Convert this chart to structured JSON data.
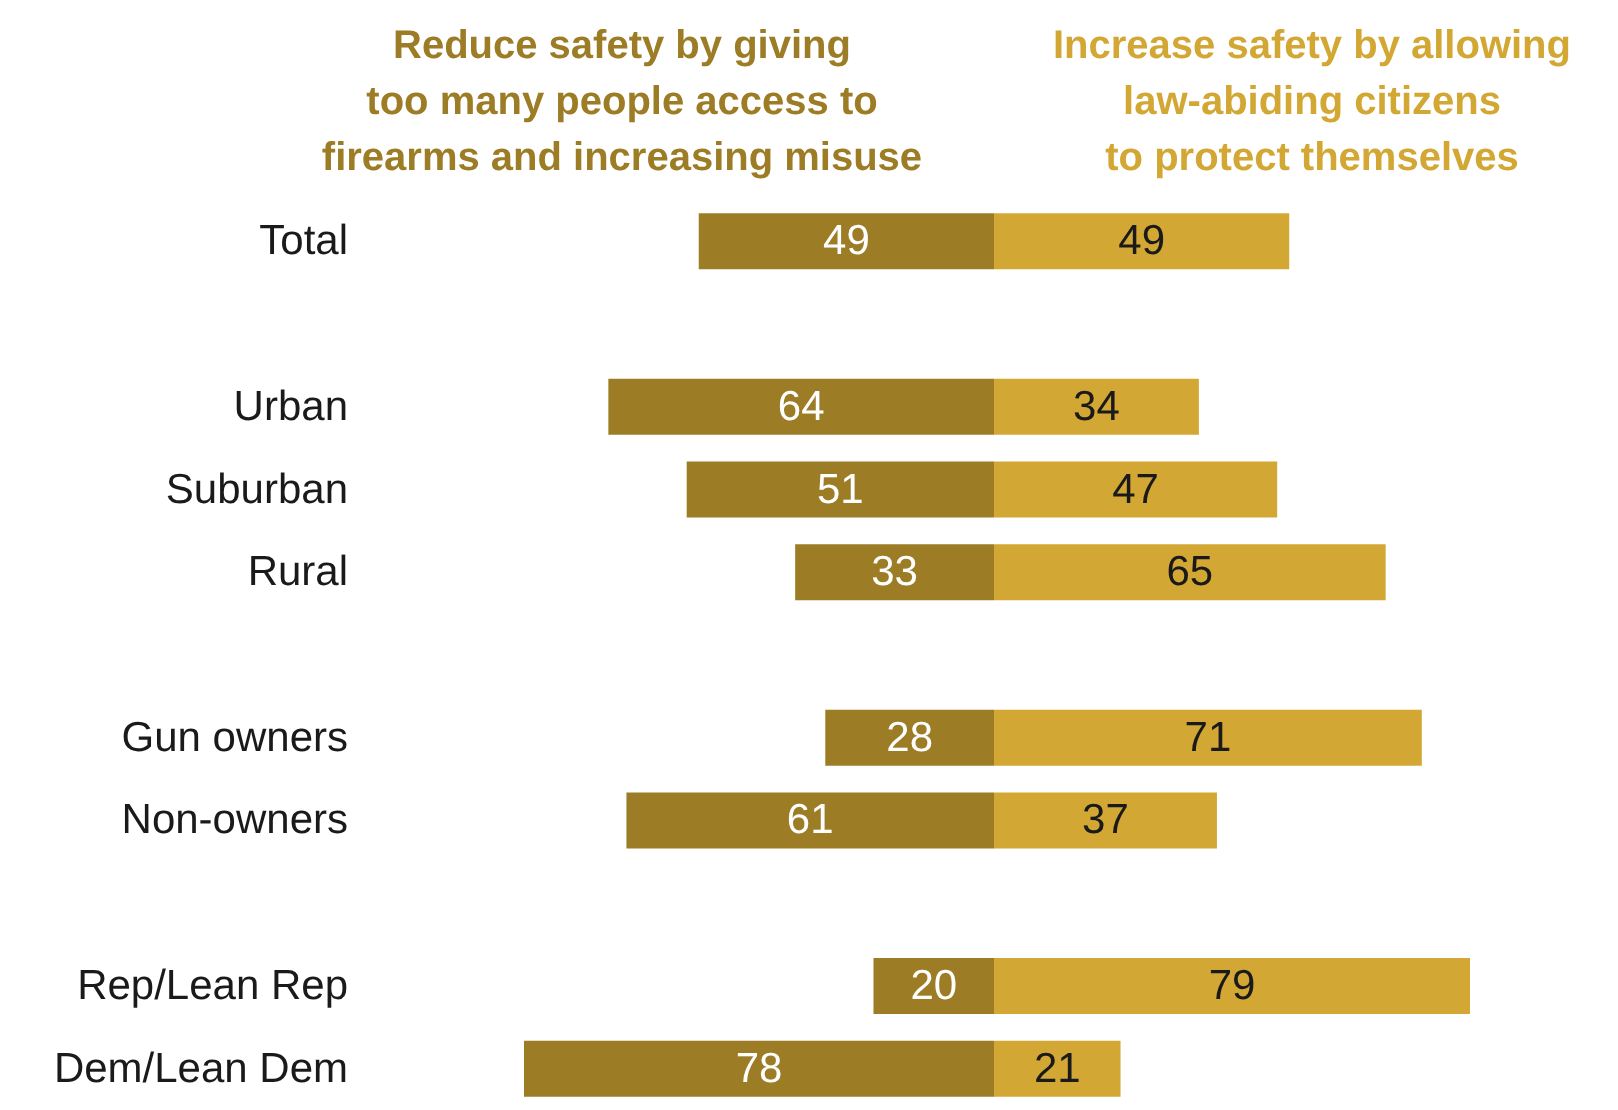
{
  "chart_data": [
    {
      "type": "bar",
      "orientation": "horizontal",
      "categories": [
        "Total",
        null,
        "Urban",
        "Suburban",
        "Rural",
        null,
        "Gun owners",
        "Non-owners",
        null,
        "Rep/Lean Rep",
        "Dem/Lean Dem"
      ],
      "series": [
        {
          "name": "Reduce safety by giving\ntoo many people access to\nfirearms and increasing misuse",
          "color": "#9c7c25",
          "values": [
            49,
            null,
            64,
            51,
            33,
            null,
            28,
            61,
            null,
            20,
            78
          ]
        }
      ],
      "xlim": [
        78,
        0
      ],
      "data_labels": true,
      "tick_labels": "y",
      "grid": false
    },
    {
      "type": "bar",
      "orientation": "horizontal",
      "categories": [
        "Total",
        null,
        "Urban",
        "Suburban",
        "Rural",
        null,
        "Gun owners",
        "Non-owners",
        null,
        "Rep/Lean Rep",
        "Dem/Lean Dem"
      ],
      "series": [
        {
          "name": "Increase safety by allowing\nlaw-abiding citizens\nto protect themselves",
          "color": "#d3a733",
          "values": [
            49,
            null,
            34,
            47,
            65,
            null,
            71,
            37,
            null,
            79,
            21
          ]
        }
      ],
      "xlim": [
        0,
        79
      ],
      "data_labels": true,
      "tick_labels": false,
      "grid": false
    }
  ]
}
